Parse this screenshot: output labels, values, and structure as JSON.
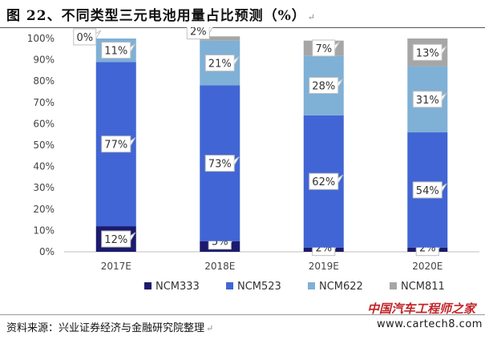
{
  "title": "图 22、不同类型三元电池用量占比预测（%）",
  "return_mark": "↵",
  "source": "资料来源：兴业证券经济与金融研究院整理",
  "watermark": {
    "line1": "中国汽车工程师之家",
    "line2": "www.cartech8.com"
  },
  "colors": {
    "NCM333": "#1c1a6e",
    "NCM523": "#4165d4",
    "NCM622": "#7fb0d6",
    "NCM811": "#a6a6a6"
  },
  "chart_data": {
    "type": "bar",
    "stacked": true,
    "title": "不同类型三元电池用量占比预测（%）",
    "categories": [
      "2017E",
      "2018E",
      "2019E",
      "2020E"
    ],
    "series": [
      {
        "name": "NCM333",
        "values": [
          12,
          5,
          2,
          2
        ]
      },
      {
        "name": "NCM523",
        "values": [
          77,
          73,
          62,
          54
        ]
      },
      {
        "name": "NCM622",
        "values": [
          11,
          21,
          28,
          31
        ]
      },
      {
        "name": "NCM811",
        "values": [
          0,
          2,
          7,
          13
        ]
      }
    ],
    "ylim": [
      0,
      100
    ],
    "yticks": [
      "0%",
      "10%",
      "20%",
      "30%",
      "40%",
      "50%",
      "60%",
      "70%",
      "80%",
      "90%",
      "100%"
    ],
    "legend_position": "bottom",
    "xlabel": "",
    "ylabel": ""
  }
}
